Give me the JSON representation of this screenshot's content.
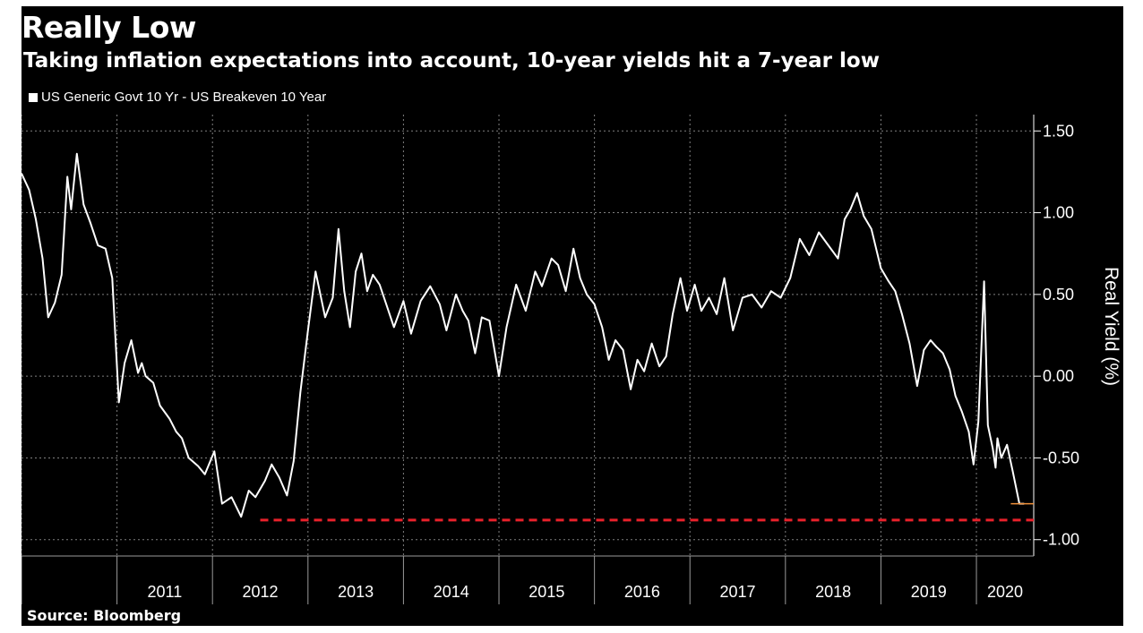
{
  "title": "Really Low",
  "subtitle": "Taking inflation expectations into account, 10-year yields hit a 7-year low",
  "source": "Source: Bloomberg",
  "colors": {
    "background": "#000000",
    "series": "#ffffff",
    "low_line": "#e8212b",
    "last_value": "#f0913a",
    "grid": "#7f7f7f"
  },
  "chart_data": {
    "type": "line",
    "ylabel": "Real Yield (%)",
    "ylim": [
      -1.1,
      1.6
    ],
    "yticks": [
      1.5,
      1.0,
      0.5,
      0.0,
      -0.5,
      -1.0
    ],
    "ytick_labels": [
      "1.50",
      "1.00",
      "0.50",
      "0.00",
      "-0.50",
      "-1.00"
    ],
    "xlim": [
      2010.0,
      2020.6
    ],
    "x_categories": [
      "2011",
      "2012",
      "2013",
      "2014",
      "2015",
      "2016",
      "2017",
      "2018",
      "2019",
      "2020"
    ],
    "grid": true,
    "legend_position": "top-left",
    "series": [
      {
        "name": "US Generic Govt 10 Yr - US Breakeven 10 Year",
        "x": [
          2010.0,
          2010.08,
          2010.15,
          2010.22,
          2010.28,
          2010.35,
          2010.42,
          2010.48,
          2010.52,
          2010.58,
          2010.65,
          2010.72,
          2010.8,
          2010.88,
          2010.95,
          2011.02,
          2011.08,
          2011.15,
          2011.22,
          2011.26,
          2011.3,
          2011.38,
          2011.45,
          2011.55,
          2011.62,
          2011.68,
          2011.75,
          2011.85,
          2011.92,
          2012.02,
          2012.1,
          2012.2,
          2012.3,
          2012.38,
          2012.45,
          2012.55,
          2012.62,
          2012.7,
          2012.78,
          2012.85,
          2012.92,
          2013.0,
          2013.08,
          2013.18,
          2013.26,
          2013.32,
          2013.38,
          2013.44,
          2013.5,
          2013.56,
          2013.62,
          2013.68,
          2013.75,
          2013.82,
          2013.9,
          2014.0,
          2014.08,
          2014.18,
          2014.28,
          2014.38,
          2014.45,
          2014.55,
          2014.62,
          2014.68,
          2014.75,
          2014.82,
          2014.9,
          2015.0,
          2015.08,
          2015.18,
          2015.28,
          2015.38,
          2015.45,
          2015.55,
          2015.62,
          2015.7,
          2015.78,
          2015.85,
          2015.92,
          2016.0,
          2016.08,
          2016.15,
          2016.22,
          2016.3,
          2016.38,
          2016.45,
          2016.52,
          2016.6,
          2016.68,
          2016.75,
          2016.82,
          2016.9,
          2016.97,
          2017.05,
          2017.12,
          2017.2,
          2017.28,
          2017.36,
          2017.45,
          2017.55,
          2017.65,
          2017.75,
          2017.85,
          2017.95,
          2018.05,
          2018.15,
          2018.25,
          2018.35,
          2018.45,
          2018.55,
          2018.62,
          2018.68,
          2018.75,
          2018.82,
          2018.9,
          2019.0,
          2019.08,
          2019.15,
          2019.22,
          2019.3,
          2019.38,
          2019.45,
          2019.52,
          2019.58,
          2019.65,
          2019.72,
          2019.78,
          2019.85,
          2019.92,
          2019.97,
          2020.02,
          2020.08,
          2020.12,
          2020.17,
          2020.2,
          2020.22,
          2020.26,
          2020.32,
          2020.38,
          2020.45,
          2020.5
        ],
        "y": [
          1.24,
          1.14,
          0.96,
          0.72,
          0.36,
          0.45,
          0.62,
          1.22,
          1.02,
          1.36,
          1.05,
          0.94,
          0.8,
          0.78,
          0.6,
          -0.16,
          0.08,
          0.22,
          0.02,
          0.08,
          0.0,
          -0.04,
          -0.18,
          -0.26,
          -0.34,
          -0.38,
          -0.5,
          -0.55,
          -0.6,
          -0.46,
          -0.78,
          -0.74,
          -0.86,
          -0.7,
          -0.74,
          -0.64,
          -0.54,
          -0.62,
          -0.73,
          -0.52,
          -0.1,
          0.28,
          0.64,
          0.36,
          0.48,
          0.9,
          0.52,
          0.3,
          0.64,
          0.75,
          0.52,
          0.62,
          0.56,
          0.44,
          0.3,
          0.46,
          0.26,
          0.46,
          0.55,
          0.44,
          0.28,
          0.5,
          0.4,
          0.34,
          0.14,
          0.36,
          0.34,
          0.0,
          0.3,
          0.56,
          0.4,
          0.64,
          0.55,
          0.72,
          0.68,
          0.52,
          0.78,
          0.6,
          0.5,
          0.44,
          0.3,
          0.1,
          0.22,
          0.16,
          -0.08,
          0.1,
          0.03,
          0.2,
          0.06,
          0.12,
          0.38,
          0.6,
          0.4,
          0.56,
          0.4,
          0.48,
          0.38,
          0.6,
          0.28,
          0.48,
          0.5,
          0.42,
          0.52,
          0.48,
          0.6,
          0.84,
          0.74,
          0.88,
          0.8,
          0.72,
          0.96,
          1.02,
          1.12,
          0.98,
          0.9,
          0.66,
          0.58,
          0.52,
          0.38,
          0.2,
          -0.06,
          0.16,
          0.22,
          0.18,
          0.14,
          0.04,
          -0.12,
          -0.22,
          -0.34,
          -0.54,
          -0.28,
          0.58,
          -0.3,
          -0.44,
          -0.56,
          -0.38,
          -0.5,
          -0.42,
          -0.58,
          -0.78,
          -0.78
        ]
      }
    ],
    "annotations": [
      {
        "type": "horizontal-dashed",
        "y": -0.88,
        "x_start": 2012.5,
        "x_end": 2020.6
      },
      {
        "type": "last-value-line",
        "y": -0.78,
        "x_start": 2020.36,
        "x_end": 2020.6
      }
    ]
  }
}
